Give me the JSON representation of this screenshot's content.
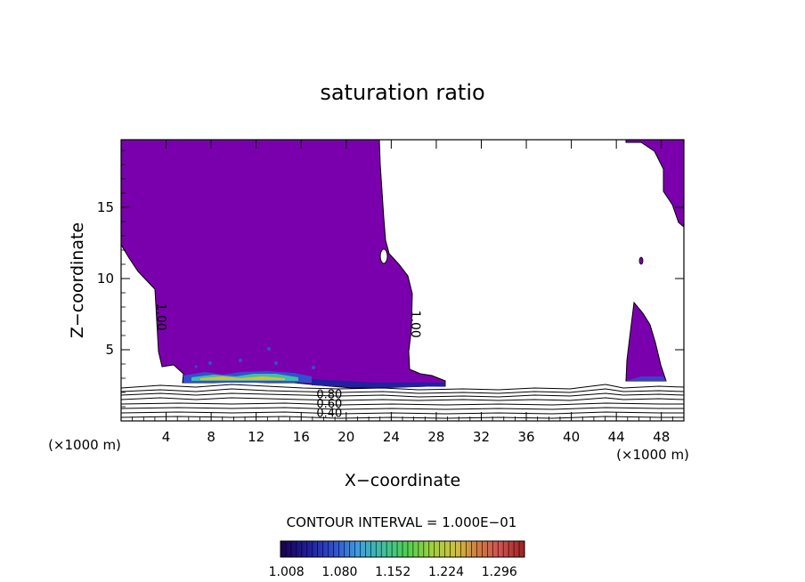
{
  "chart_data": {
    "type": "contour",
    "title": "saturation ratio",
    "xlabel": "X−coordinate",
    "ylabel": "Z−coordinate",
    "x_unit_left": "(×1000 m)",
    "x_unit_right": "(×1000 m)",
    "xlim": [
      0,
      50
    ],
    "ylim": [
      0,
      19.75
    ],
    "x_ticks": [
      4,
      8,
      12,
      16,
      20,
      24,
      28,
      32,
      36,
      40,
      44,
      48
    ],
    "y_ticks": [
      5,
      10,
      15
    ],
    "contour_labels": [
      {
        "text": "1.00",
        "x": 3.2,
        "y": 7.3
      },
      {
        "text": "1.00",
        "x": 25.8,
        "y": 6.8
      },
      {
        "text": "0.80",
        "x": 18.5,
        "y": 1.9
      },
      {
        "text": "0.60",
        "x": 18.5,
        "y": 1.25
      },
      {
        "text": "0.40",
        "x": 18.5,
        "y": 0.6
      }
    ],
    "contour_interval_label": "CONTOUR INTERVAL = 1.000E−01",
    "colorbar": {
      "tick_labels": [
        "1.008",
        "1.080",
        "1.152",
        "1.224",
        "1.296"
      ],
      "range": [
        1.0,
        1.33
      ],
      "colors": [
        "#1a0050",
        "#2020a0",
        "#3050d0",
        "#40a0e0",
        "#40c0a0",
        "#50d050",
        "#a0d040",
        "#d0c040",
        "#d08040",
        "#d05050",
        "#c03030",
        "#a02020"
      ]
    },
    "fill_color": "#7b00ad",
    "line_color": "#000000"
  }
}
